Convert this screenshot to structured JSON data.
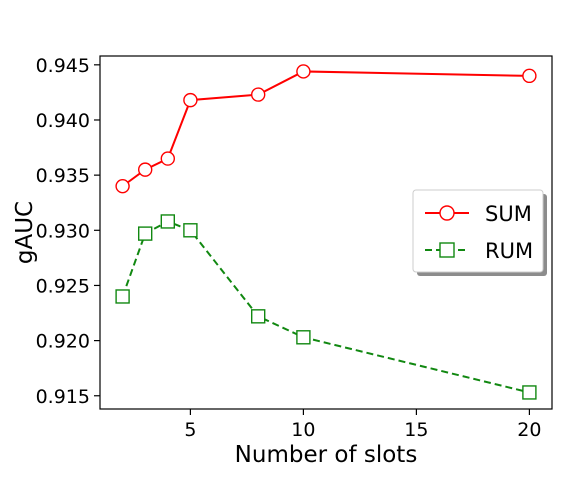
{
  "chart_data": {
    "type": "line",
    "title": "",
    "xlabel": "Number of slots",
    "ylabel": "gAUC",
    "xlim": [
      1.0,
      21.0
    ],
    "ylim": [
      0.9138,
      0.9458
    ],
    "x_ticks": [
      5,
      10,
      15,
      20
    ],
    "x_tick_labels": [
      "5",
      "10",
      "15",
      "20"
    ],
    "y_ticks": [
      0.915,
      0.92,
      0.925,
      0.93,
      0.935,
      0.94,
      0.945
    ],
    "y_tick_labels": [
      "0.915",
      "0.920",
      "0.925",
      "0.930",
      "0.935",
      "0.940",
      "0.945"
    ],
    "grid": false,
    "legend_position": "center-right",
    "series": [
      {
        "name": "SUM",
        "color": "#ff0000",
        "line_style": "solid",
        "marker": "circle",
        "x": [
          2,
          3,
          4,
          5,
          8,
          10,
          20
        ],
        "y": [
          0.934,
          0.9355,
          0.9365,
          0.9418,
          0.9423,
          0.9444,
          0.944
        ]
      },
      {
        "name": "RUM",
        "color": "#118811",
        "line_style": "dashed",
        "marker": "square",
        "x": [
          2,
          3,
          4,
          5,
          8,
          10,
          20
        ],
        "y": [
          0.924,
          0.9297,
          0.9308,
          0.93,
          0.9222,
          0.9203,
          0.9153
        ]
      }
    ]
  }
}
